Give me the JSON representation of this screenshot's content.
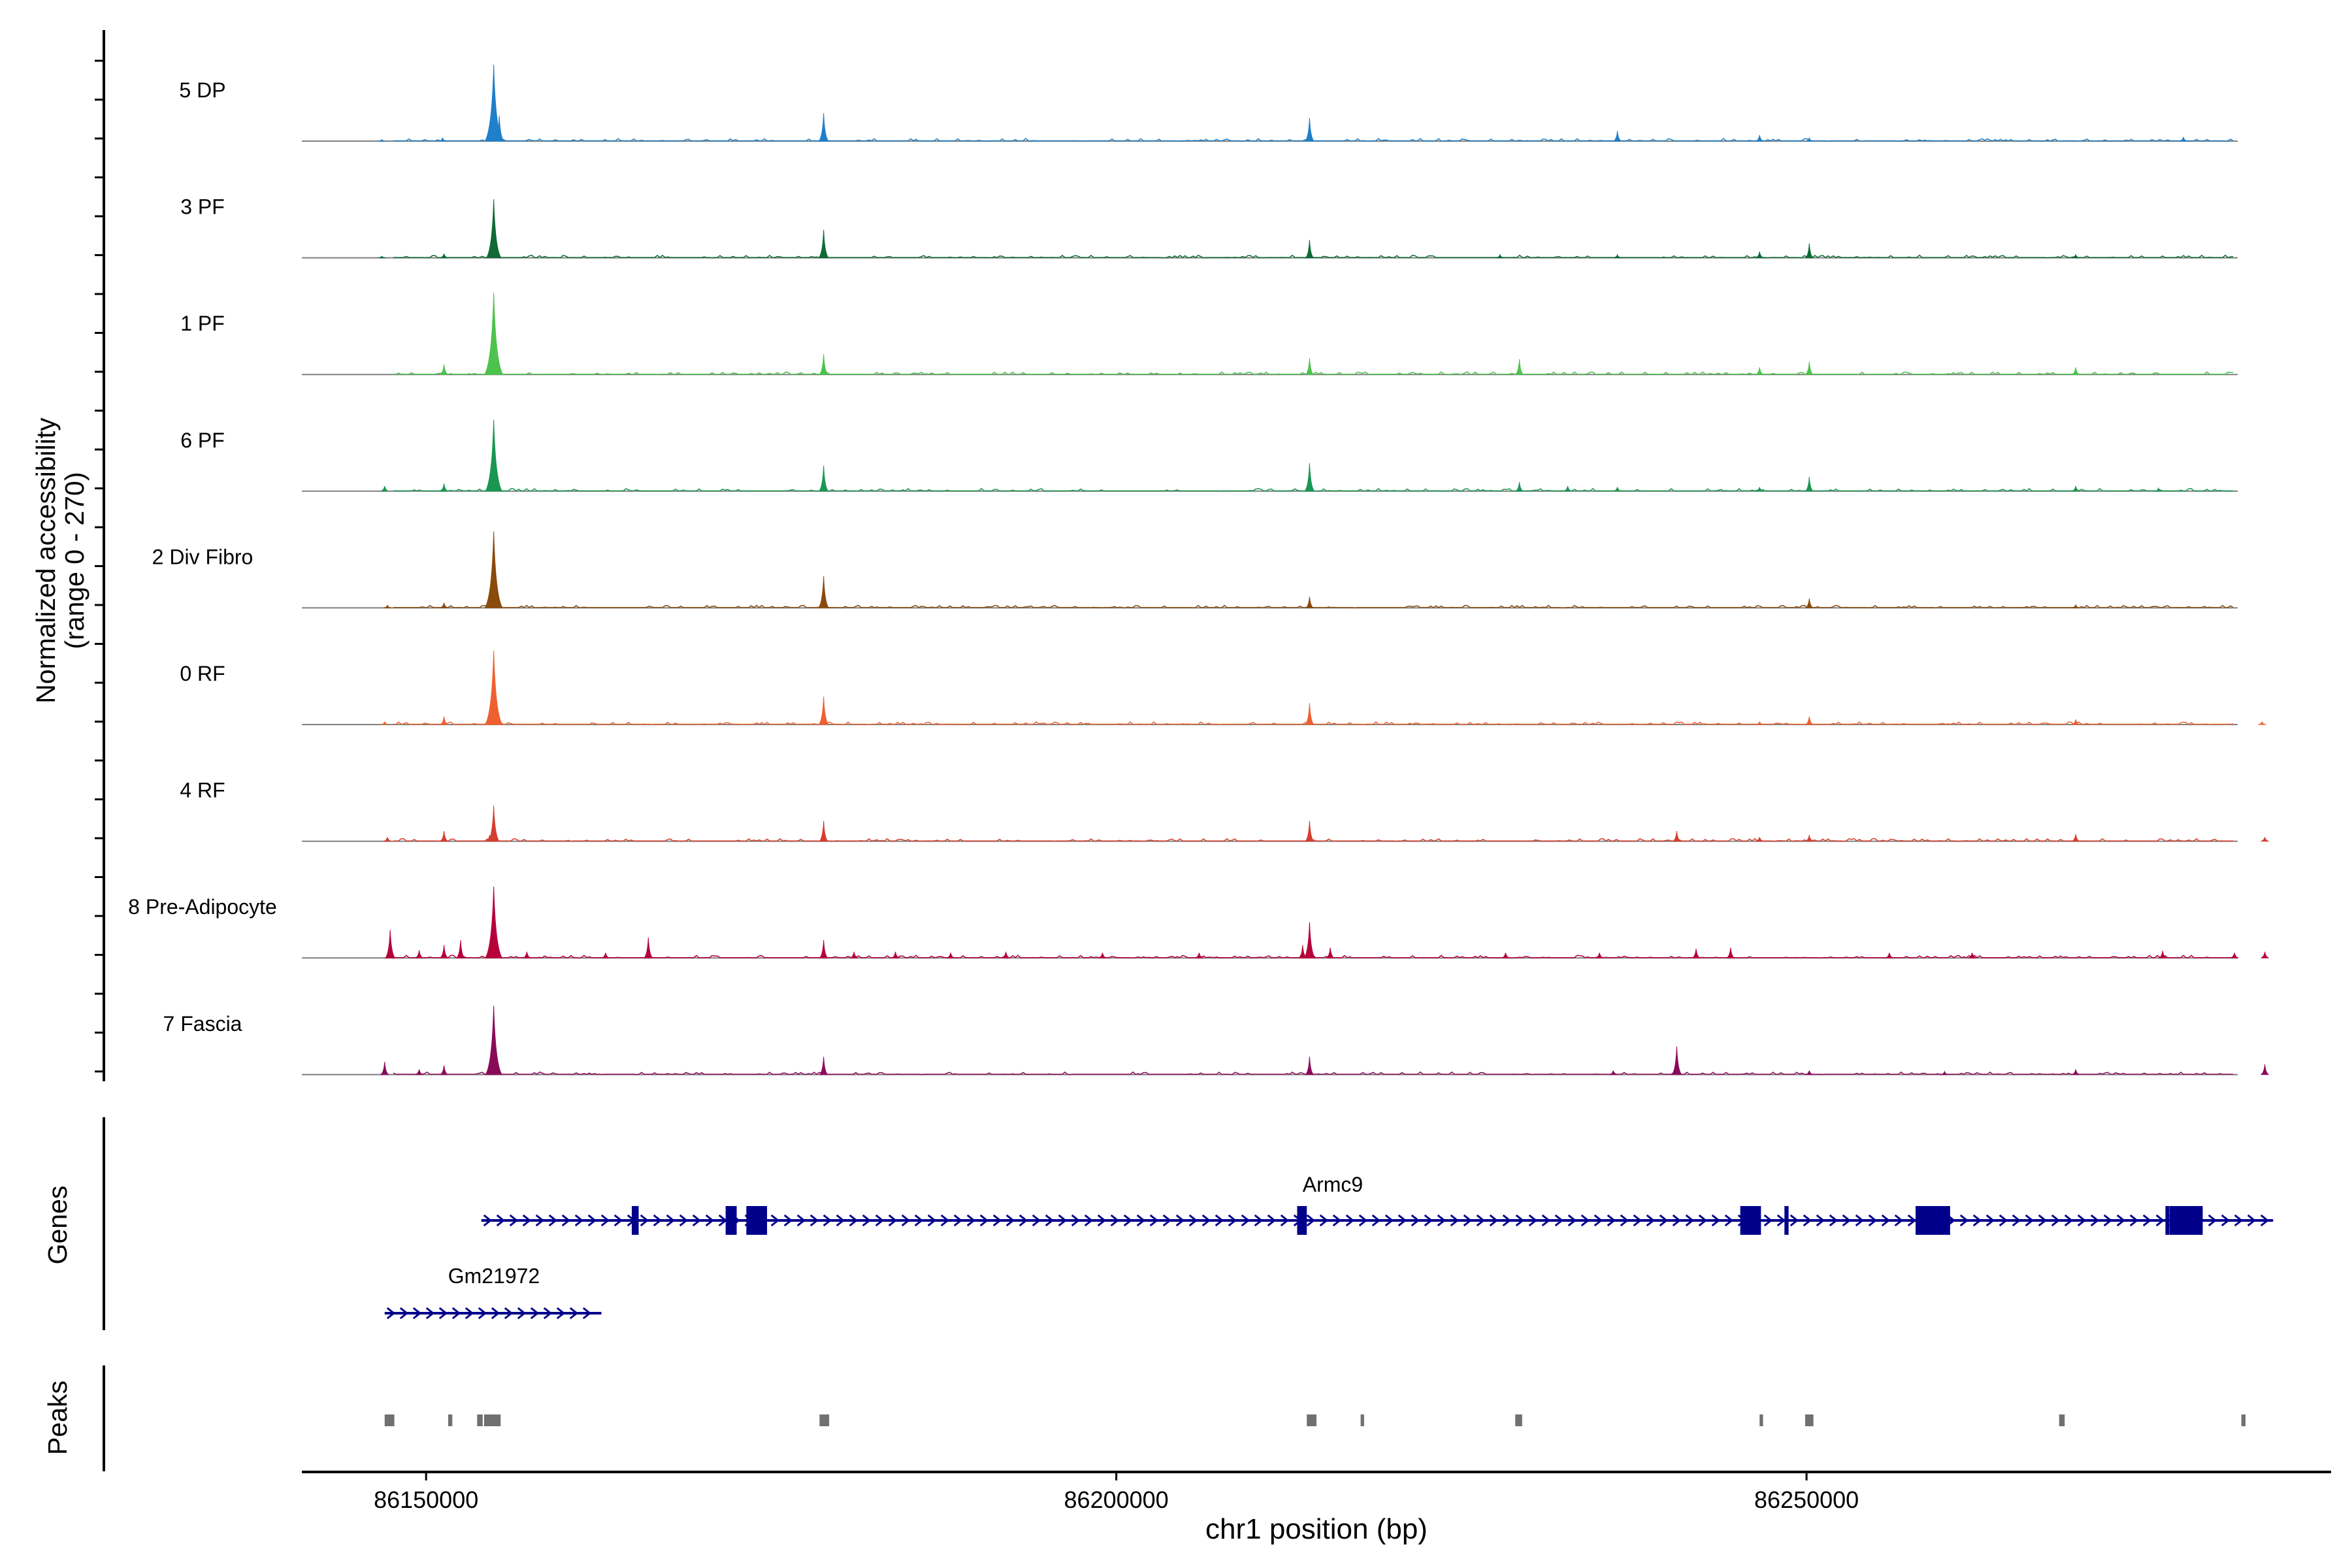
{
  "chart_data": {
    "type": "area",
    "xlabel": "chr1 position (bp)",
    "xlim": [
      86141000,
      86288000
    ],
    "x_ticks": [
      "86150000",
      "86200000",
      "86250000"
    ],
    "x_tick_values": [
      86150000,
      86200000,
      86250000
    ],
    "ylabel": "Normalized accessibility",
    "ylabel_sub": "(range 0 - 270)",
    "ylim": [
      0,
      270
    ],
    "grid": false,
    "legend": "none",
    "baseline_color": "#808080",
    "series": [
      {
        "name": "5 DP",
        "color": "#1f7fc8",
        "peaks": [
          [
            86146800,
            3
          ],
          [
            86151200,
            6
          ],
          [
            86154600,
            20
          ],
          [
            86154900,
            150
          ],
          [
            86155300,
            50
          ],
          [
            86178800,
            55
          ],
          [
            86214000,
            45
          ],
          [
            86236300,
            20
          ],
          [
            86246600,
            12
          ],
          [
            86250200,
            6
          ],
          [
            86277300,
            8
          ]
        ]
      },
      {
        "name": "3 PF",
        "color": "#0f6a35",
        "peaks": [
          [
            86146800,
            3
          ],
          [
            86151300,
            8
          ],
          [
            86154900,
            115
          ],
          [
            86178800,
            55
          ],
          [
            86214000,
            35
          ],
          [
            86227800,
            6
          ],
          [
            86236300,
            6
          ],
          [
            86246600,
            12
          ],
          [
            86250200,
            28
          ],
          [
            86269500,
            6
          ]
        ]
      },
      {
        "name": "1 PF",
        "color": "#4dc24d",
        "peaks": [
          [
            86151300,
            20
          ],
          [
            86154900,
            160
          ],
          [
            86178800,
            40
          ],
          [
            86214000,
            32
          ],
          [
            86229200,
            30
          ],
          [
            86246600,
            14
          ],
          [
            86250200,
            25
          ],
          [
            86269500,
            14
          ]
        ]
      },
      {
        "name": "6 PF",
        "color": "#1a9650",
        "peaks": [
          [
            86147000,
            10
          ],
          [
            86151300,
            15
          ],
          [
            86154900,
            140
          ],
          [
            86178800,
            50
          ],
          [
            86214000,
            55
          ],
          [
            86229200,
            18
          ],
          [
            86232700,
            10
          ],
          [
            86236300,
            8
          ],
          [
            86246600,
            8
          ],
          [
            86250200,
            28
          ],
          [
            86269500,
            10
          ],
          [
            86275500,
            6
          ]
        ]
      },
      {
        "name": "2 Div Fibro",
        "color": "#8a4a0c",
        "peaks": [
          [
            86147200,
            5
          ],
          [
            86151300,
            10
          ],
          [
            86154900,
            150
          ],
          [
            86178800,
            62
          ],
          [
            86214000,
            22
          ],
          [
            86250200,
            18
          ],
          [
            86269500,
            6
          ]
        ]
      },
      {
        "name": "0 RF",
        "color": "#ee6030",
        "peaks": [
          [
            86147000,
            5
          ],
          [
            86151300,
            16
          ],
          [
            86154900,
            145
          ],
          [
            86178800,
            55
          ],
          [
            86214000,
            42
          ],
          [
            86246600,
            5
          ],
          [
            86250200,
            16
          ],
          [
            86269500,
            10
          ],
          [
            86283000,
            5
          ]
        ]
      },
      {
        "name": "4 RF",
        "color": "#d53e2e",
        "peaks": [
          [
            86147200,
            8
          ],
          [
            86151300,
            20
          ],
          [
            86154600,
            12
          ],
          [
            86154900,
            70
          ],
          [
            86178800,
            40
          ],
          [
            86214000,
            40
          ],
          [
            86240600,
            20
          ],
          [
            86246600,
            8
          ],
          [
            86250200,
            12
          ],
          [
            86269500,
            14
          ],
          [
            86283200,
            8
          ]
        ]
      },
      {
        "name": "8 Pre-Adipocyte",
        "color": "#b5003a",
        "peaks": [
          [
            86147400,
            55
          ],
          [
            86149500,
            15
          ],
          [
            86151300,
            25
          ],
          [
            86152500,
            35
          ],
          [
            86154900,
            140
          ],
          [
            86157300,
            12
          ],
          [
            86163000,
            10
          ],
          [
            86166100,
            40
          ],
          [
            86178800,
            35
          ],
          [
            86181000,
            12
          ],
          [
            86184000,
            12
          ],
          [
            86188000,
            10
          ],
          [
            86192000,
            12
          ],
          [
            86199000,
            10
          ],
          [
            86206000,
            10
          ],
          [
            86213500,
            25
          ],
          [
            86214000,
            70
          ],
          [
            86215500,
            20
          ],
          [
            86228200,
            10
          ],
          [
            86235000,
            10
          ],
          [
            86242000,
            18
          ],
          [
            86244500,
            20
          ],
          [
            86256000,
            10
          ],
          [
            86262000,
            10
          ],
          [
            86275800,
            14
          ],
          [
            86281000,
            10
          ],
          [
            86283200,
            12
          ]
        ]
      },
      {
        "name": "7 Fascia",
        "color": "#8a0a5a",
        "peaks": [
          [
            86147000,
            25
          ],
          [
            86149500,
            10
          ],
          [
            86151300,
            18
          ],
          [
            86154900,
            135
          ],
          [
            86178800,
            35
          ],
          [
            86214000,
            35
          ],
          [
            86236000,
            8
          ],
          [
            86240600,
            55
          ],
          [
            86250200,
            8
          ],
          [
            86260000,
            6
          ],
          [
            86269500,
            10
          ],
          [
            86283200,
            20
          ]
        ]
      }
    ],
    "genes": [
      {
        "name": "Armc9",
        "start": 86154000,
        "end": 86283800,
        "exons": [
          [
            86164900,
            86165400
          ],
          [
            86171700,
            86172500
          ],
          [
            86173200,
            86174700
          ],
          [
            86213100,
            86213800
          ],
          [
            86245200,
            86246700
          ],
          [
            86248400,
            86248700
          ],
          [
            86257900,
            86260400
          ],
          [
            86276000,
            86276200
          ],
          [
            86276300,
            86278700
          ]
        ]
      },
      {
        "name": "Gm21972",
        "start": 86147000,
        "end": 86162700,
        "exons": []
      }
    ],
    "peaks_track": [
      [
        86147000,
        86147700
      ],
      [
        86151600,
        86151900
      ],
      [
        86153700,
        86154100
      ],
      [
        86154200,
        86155400
      ],
      [
        86178500,
        86179200
      ],
      [
        86213800,
        86214500
      ],
      [
        86217700,
        86217950
      ],
      [
        86228900,
        86229400
      ],
      [
        86246600,
        86246850
      ],
      [
        86249900,
        86250500
      ],
      [
        86268300,
        86268700
      ],
      [
        86281500,
        86281800
      ]
    ]
  },
  "tracks": {
    "genes_label": "Genes",
    "peaks_label": "Peaks"
  }
}
